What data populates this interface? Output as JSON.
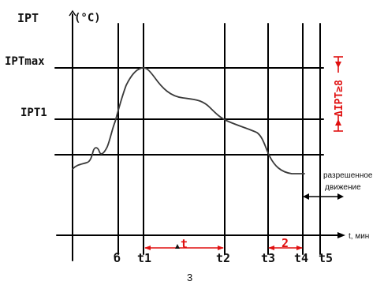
{
  "labels": {
    "y_axis_title": "IPT",
    "y_axis_unit": "(°C)",
    "ipt_max": "IPTmax",
    "ipt1": "IPT1",
    "delta_ipt": "ΔIPT≥8",
    "allowed_motion_line1": "разрешенное",
    "allowed_motion_line2": "движение",
    "x_axis_label": "t, мин",
    "time_marks": [
      "б",
      "t1",
      "t2",
      "t3",
      "t4",
      "t5"
    ],
    "delta_t": "t",
    "interval_2": "2",
    "figure_number": "3"
  },
  "colors": {
    "annotation": "#e01010",
    "lines": "#000000",
    "curve": "#3a3a3a"
  }
}
